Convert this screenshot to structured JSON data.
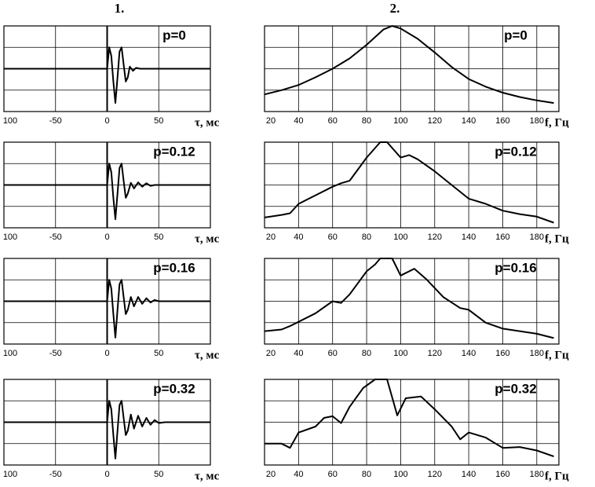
{
  "columns": [
    "1.",
    "2."
  ],
  "chart_data": [
    {
      "type": "line",
      "title": "p=0",
      "xlabel": "τ, мс",
      "color": "#000000",
      "grid": true,
      "xlim": [
        -100,
        100
      ],
      "ylim": [
        -1,
        1
      ],
      "xticks": [
        {
          "value": -100,
          "label": "100"
        },
        -50,
        0,
        50
      ],
      "ygrid": [
        -0.5,
        0,
        0.5
      ],
      "x": [
        -100,
        0,
        2,
        4,
        6,
        8,
        10,
        12,
        14,
        16,
        18,
        20,
        22,
        25,
        28,
        32,
        40,
        100
      ],
      "values": [
        0,
        0,
        0.5,
        0.3,
        -0.3,
        -0.8,
        -0.2,
        0.4,
        0.5,
        0.1,
        -0.3,
        -0.2,
        0.05,
        -0.05,
        0.02,
        0,
        0,
        0
      ]
    },
    {
      "type": "line",
      "title": "p=0",
      "xlabel": "f, Гц",
      "color": "#000000",
      "grid": true,
      "xlim": [
        20,
        193
      ],
      "ylim": [
        0,
        1
      ],
      "xticks": [
        20,
        40,
        60,
        80,
        100,
        120,
        140,
        160,
        180
      ],
      "ygrid": [
        0.25,
        0.5,
        0.75
      ],
      "x": [
        20,
        30,
        40,
        50,
        60,
        70,
        80,
        90,
        95,
        100,
        110,
        120,
        130,
        140,
        150,
        160,
        170,
        180,
        190
      ],
      "values": [
        0.2,
        0.25,
        0.31,
        0.4,
        0.5,
        0.62,
        0.78,
        0.96,
        1.0,
        0.97,
        0.85,
        0.69,
        0.52,
        0.38,
        0.29,
        0.22,
        0.17,
        0.13,
        0.1
      ]
    },
    {
      "type": "line",
      "title": "p=0.12",
      "xlabel": "τ, мс",
      "color": "#000000",
      "grid": true,
      "xlim": [
        -100,
        100
      ],
      "ylim": [
        -1,
        1
      ],
      "xticks": [
        {
          "value": -100,
          "label": "100"
        },
        -50,
        0,
        50
      ],
      "ygrid": [
        -0.5,
        0,
        0.5
      ],
      "x": [
        -100,
        0,
        2,
        4,
        6,
        8,
        10,
        12,
        14,
        16,
        18,
        20,
        23,
        26,
        30,
        34,
        38,
        42,
        46,
        100
      ],
      "values": [
        0,
        0,
        0.5,
        0.3,
        -0.3,
        -0.8,
        -0.2,
        0.4,
        0.5,
        0.1,
        -0.3,
        -0.2,
        0.05,
        -0.08,
        0.06,
        -0.04,
        0.04,
        -0.02,
        0,
        0
      ]
    },
    {
      "type": "line",
      "title": "p=0.12",
      "xlabel": "f, Гц",
      "color": "#000000",
      "grid": true,
      "xlim": [
        20,
        193
      ],
      "ylim": [
        0,
        1
      ],
      "xticks": [
        20,
        40,
        60,
        80,
        100,
        120,
        140,
        160,
        180
      ],
      "ygrid": [
        0.25,
        0.5,
        0.75
      ],
      "x": [
        20,
        30,
        35,
        40,
        50,
        60,
        65,
        70,
        80,
        88,
        92,
        100,
        105,
        110,
        120,
        130,
        140,
        150,
        160,
        170,
        180,
        190
      ],
      "values": [
        0.12,
        0.15,
        0.17,
        0.28,
        0.38,
        0.48,
        0.52,
        0.55,
        0.82,
        1.0,
        1.0,
        0.82,
        0.85,
        0.8,
        0.66,
        0.5,
        0.34,
        0.28,
        0.2,
        0.16,
        0.13,
        0.06
      ]
    },
    {
      "type": "line",
      "title": "p=0.16",
      "xlabel": "τ, мс",
      "color": "#000000",
      "grid": true,
      "xlim": [
        -100,
        100
      ],
      "ylim": [
        -1,
        1
      ],
      "xticks": [
        {
          "value": -100,
          "label": "100"
        },
        -50,
        0,
        50
      ],
      "ygrid": [
        -0.5,
        0,
        0.5
      ],
      "x": [
        -100,
        0,
        2,
        4,
        6,
        8,
        10,
        12,
        14,
        16,
        18,
        20,
        23,
        26,
        30,
        34,
        38,
        42,
        46,
        50,
        100
      ],
      "values": [
        0,
        0,
        0.5,
        0.3,
        -0.3,
        -0.85,
        -0.2,
        0.4,
        0.5,
        0.1,
        -0.3,
        -0.2,
        0.1,
        -0.12,
        0.1,
        -0.06,
        0.07,
        -0.03,
        0.03,
        0,
        0
      ]
    },
    {
      "type": "line",
      "title": "p=0.16",
      "xlabel": "f, Гц",
      "color": "#000000",
      "grid": true,
      "xlim": [
        20,
        193
      ],
      "ylim": [
        0,
        1
      ],
      "xticks": [
        20,
        40,
        60,
        80,
        100,
        120,
        140,
        160,
        180
      ],
      "ygrid": [
        0.25,
        0.5,
        0.75
      ],
      "x": [
        20,
        30,
        35,
        40,
        50,
        60,
        65,
        70,
        80,
        85,
        88,
        95,
        100,
        108,
        115,
        125,
        135,
        140,
        150,
        160,
        170,
        180,
        190
      ],
      "values": [
        0.15,
        0.17,
        0.21,
        0.26,
        0.36,
        0.5,
        0.48,
        0.58,
        0.85,
        0.93,
        1.0,
        1.0,
        0.8,
        0.88,
        0.76,
        0.55,
        0.42,
        0.4,
        0.25,
        0.18,
        0.15,
        0.12,
        0.07
      ]
    },
    {
      "type": "line",
      "title": "p=0.32",
      "xlabel": "τ, мс",
      "color": "#000000",
      "grid": true,
      "xlim": [
        -100,
        100
      ],
      "ylim": [
        -1,
        1
      ],
      "xticks": [
        {
          "value": -100,
          "label": "100"
        },
        -50,
        0,
        50
      ],
      "ygrid": [
        -0.5,
        0,
        0.5
      ],
      "x": [
        -100,
        0,
        2,
        4,
        6,
        8,
        10,
        12,
        14,
        16,
        18,
        20,
        23,
        26,
        30,
        34,
        38,
        42,
        46,
        50,
        56,
        100
      ],
      "values": [
        0,
        0,
        0.5,
        0.3,
        -0.3,
        -0.85,
        -0.2,
        0.4,
        0.5,
        0.1,
        -0.3,
        -0.2,
        0.18,
        -0.15,
        0.15,
        -0.1,
        0.1,
        -0.06,
        0.05,
        -0.02,
        0,
        0
      ]
    },
    {
      "type": "line",
      "title": "p=0.32",
      "xlabel": "f, Гц",
      "color": "#000000",
      "grid": true,
      "xlim": [
        20,
        193
      ],
      "ylim": [
        0,
        1
      ],
      "xticks": [
        20,
        40,
        60,
        80,
        100,
        120,
        140,
        160,
        180
      ],
      "ygrid": [
        0.25,
        0.5,
        0.75
      ],
      "x": [
        20,
        30,
        35,
        40,
        50,
        55,
        60,
        65,
        70,
        78,
        85,
        92,
        98,
        103,
        112,
        120,
        130,
        135,
        140,
        150,
        160,
        170,
        180,
        190
      ],
      "values": [
        0.25,
        0.25,
        0.2,
        0.38,
        0.45,
        0.55,
        0.57,
        0.49,
        0.68,
        0.9,
        1.0,
        1.0,
        0.58,
        0.78,
        0.8,
        0.65,
        0.45,
        0.3,
        0.38,
        0.32,
        0.2,
        0.21,
        0.17,
        0.1
      ]
    }
  ]
}
